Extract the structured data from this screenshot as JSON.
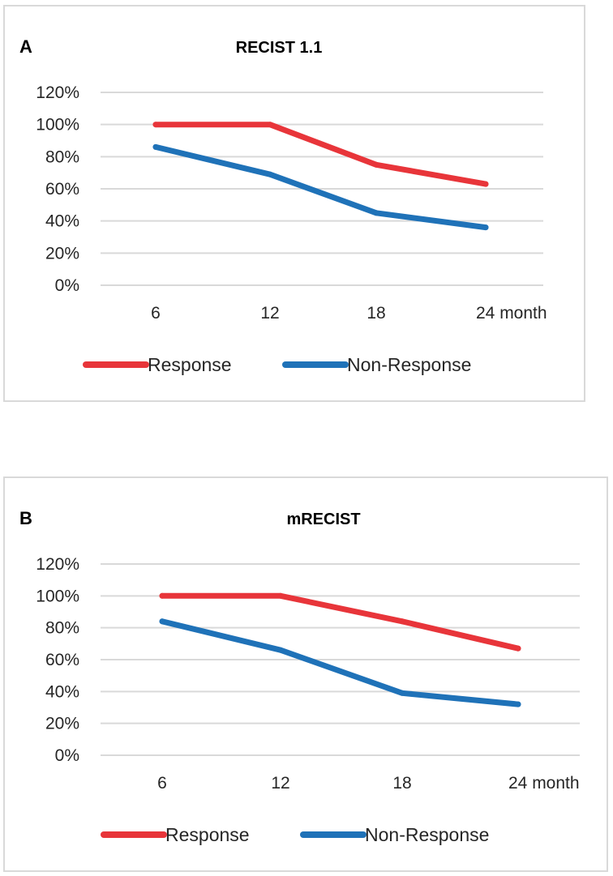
{
  "colors": {
    "response": "#e8353a",
    "non_response": "#1f72b8"
  },
  "chart_data": [
    {
      "type": "line",
      "panel_label": "A",
      "title": "RECIST 1.1",
      "categories": [
        "6",
        "12",
        "18",
        "24 month"
      ],
      "series": [
        {
          "name": "Response",
          "values": [
            100,
            100,
            75,
            63
          ]
        },
        {
          "name": "Non-Response",
          "values": [
            86,
            69,
            45,
            36
          ]
        }
      ],
      "ylim": [
        0,
        120
      ],
      "yticks": [
        "0%",
        "20%",
        "40%",
        "60%",
        "80%",
        "100%",
        "120%"
      ],
      "grid": true,
      "legend_position": "bottom"
    },
    {
      "type": "line",
      "panel_label": "B",
      "title": "mRECIST",
      "categories": [
        "6",
        "12",
        "18",
        "24 month"
      ],
      "series": [
        {
          "name": "Response",
          "values": [
            100,
            100,
            84,
            67
          ]
        },
        {
          "name": "Non-Response",
          "values": [
            84,
            66,
            39,
            32
          ]
        }
      ],
      "ylim": [
        0,
        120
      ],
      "yticks": [
        "0%",
        "20%",
        "40%",
        "60%",
        "80%",
        "100%",
        "120%"
      ],
      "grid": true,
      "legend_position": "bottom"
    }
  ]
}
